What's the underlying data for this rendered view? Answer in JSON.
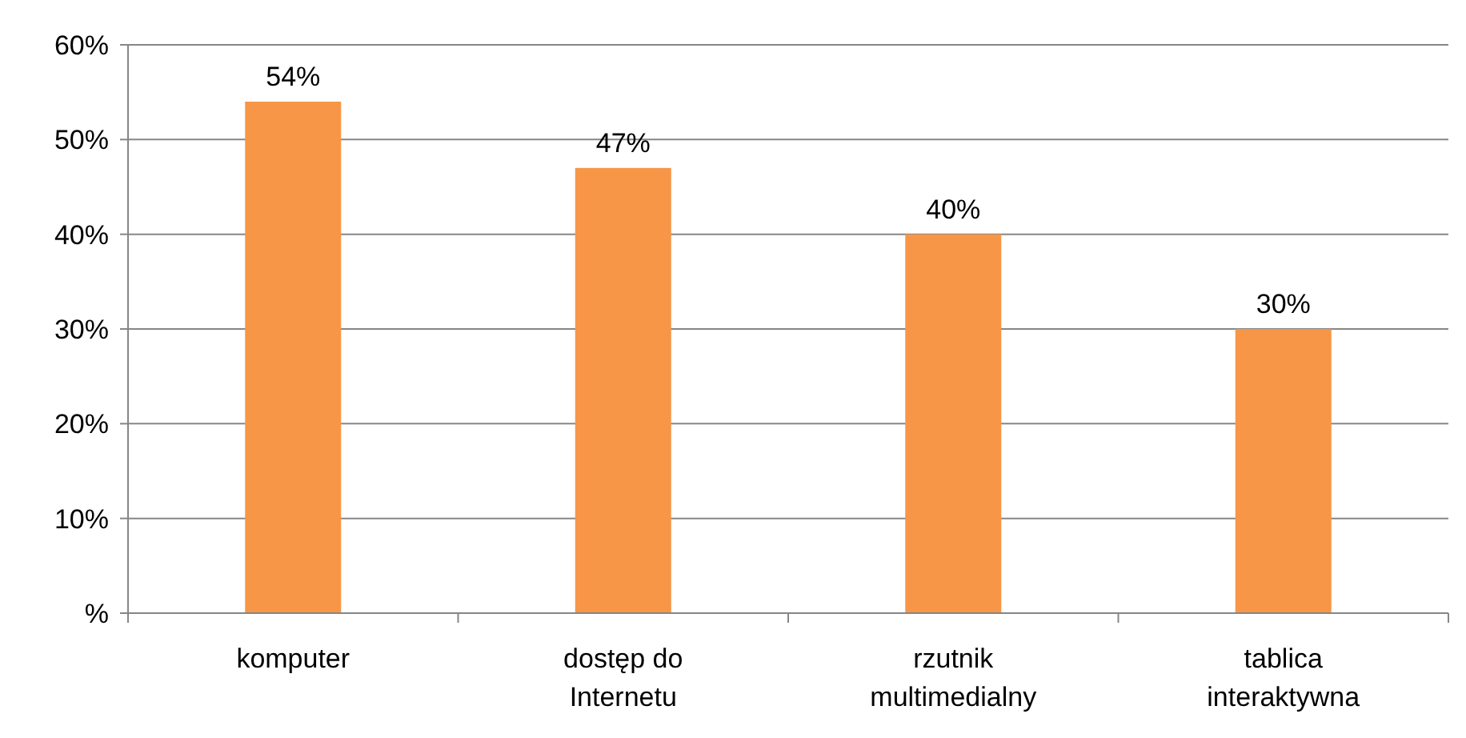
{
  "chart_data": {
    "type": "bar",
    "categories": [
      "komputer",
      "dostęp do Internetu",
      "rzutnik multimedialny",
      "tablica interaktywna"
    ],
    "values": [
      54,
      47,
      40,
      30
    ],
    "color": "#f79646",
    "value_labels": [
      "54%",
      "47%",
      "40%",
      "30%"
    ],
    "ylim": [
      0,
      60
    ],
    "yticks": [
      {
        "value": 0,
        "label": "%"
      },
      {
        "value": 10,
        "label": "10%"
      },
      {
        "value": 20,
        "label": "20%"
      },
      {
        "value": 30,
        "label": "30%"
      },
      {
        "value": 40,
        "label": "40%"
      },
      {
        "value": 50,
        "label": "50%"
      },
      {
        "value": 60,
        "label": "60%"
      }
    ],
    "grid": "y"
  }
}
